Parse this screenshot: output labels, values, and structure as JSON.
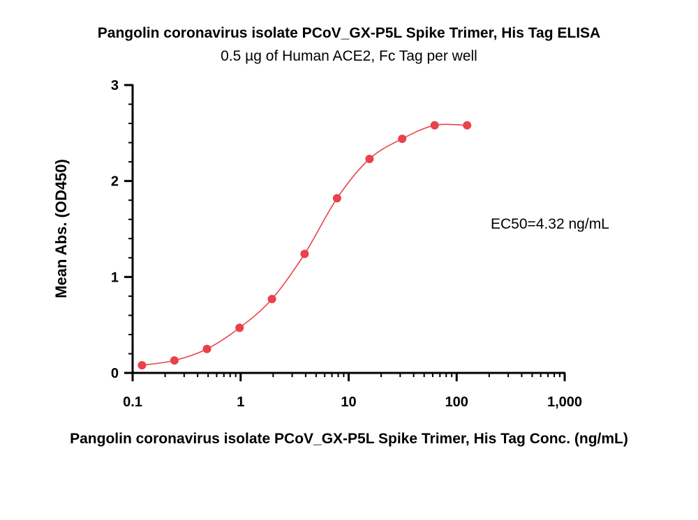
{
  "chart_data": {
    "type": "scatter",
    "title": "Pangolin coronavirus isolate PCoV_GX-P5L Spike Trimer, His Tag ELISA",
    "subtitle": "0.5 µg of Human ACE2, Fc Tag per well",
    "xlabel": "Pangolin coronavirus isolate PCoV_GX-P5L Spike Trimer, His Tag Conc. (ng/mL)",
    "ylabel": "Mean Abs. (OD450)",
    "xscale": "log",
    "xlim": [
      0.1,
      1000
    ],
    "ylim": [
      0,
      3
    ],
    "x_ticks": [
      "0.1",
      "1",
      "10",
      "100",
      "1,000"
    ],
    "y_ticks": [
      "0",
      "1",
      "2",
      "3"
    ],
    "annotation": "EC50=4.32 ng/mL",
    "grid": false,
    "series": [
      {
        "color": "#e8424a",
        "x": [
          0.122,
          0.244,
          0.488,
          0.977,
          1.95,
          3.91,
          7.81,
          15.6,
          31.3,
          62.5,
          125
        ],
        "y": [
          0.08,
          0.13,
          0.25,
          0.47,
          0.77,
          1.24,
          1.82,
          2.23,
          2.44,
          2.58,
          2.58
        ],
        "fit": "4PL"
      }
    ]
  }
}
